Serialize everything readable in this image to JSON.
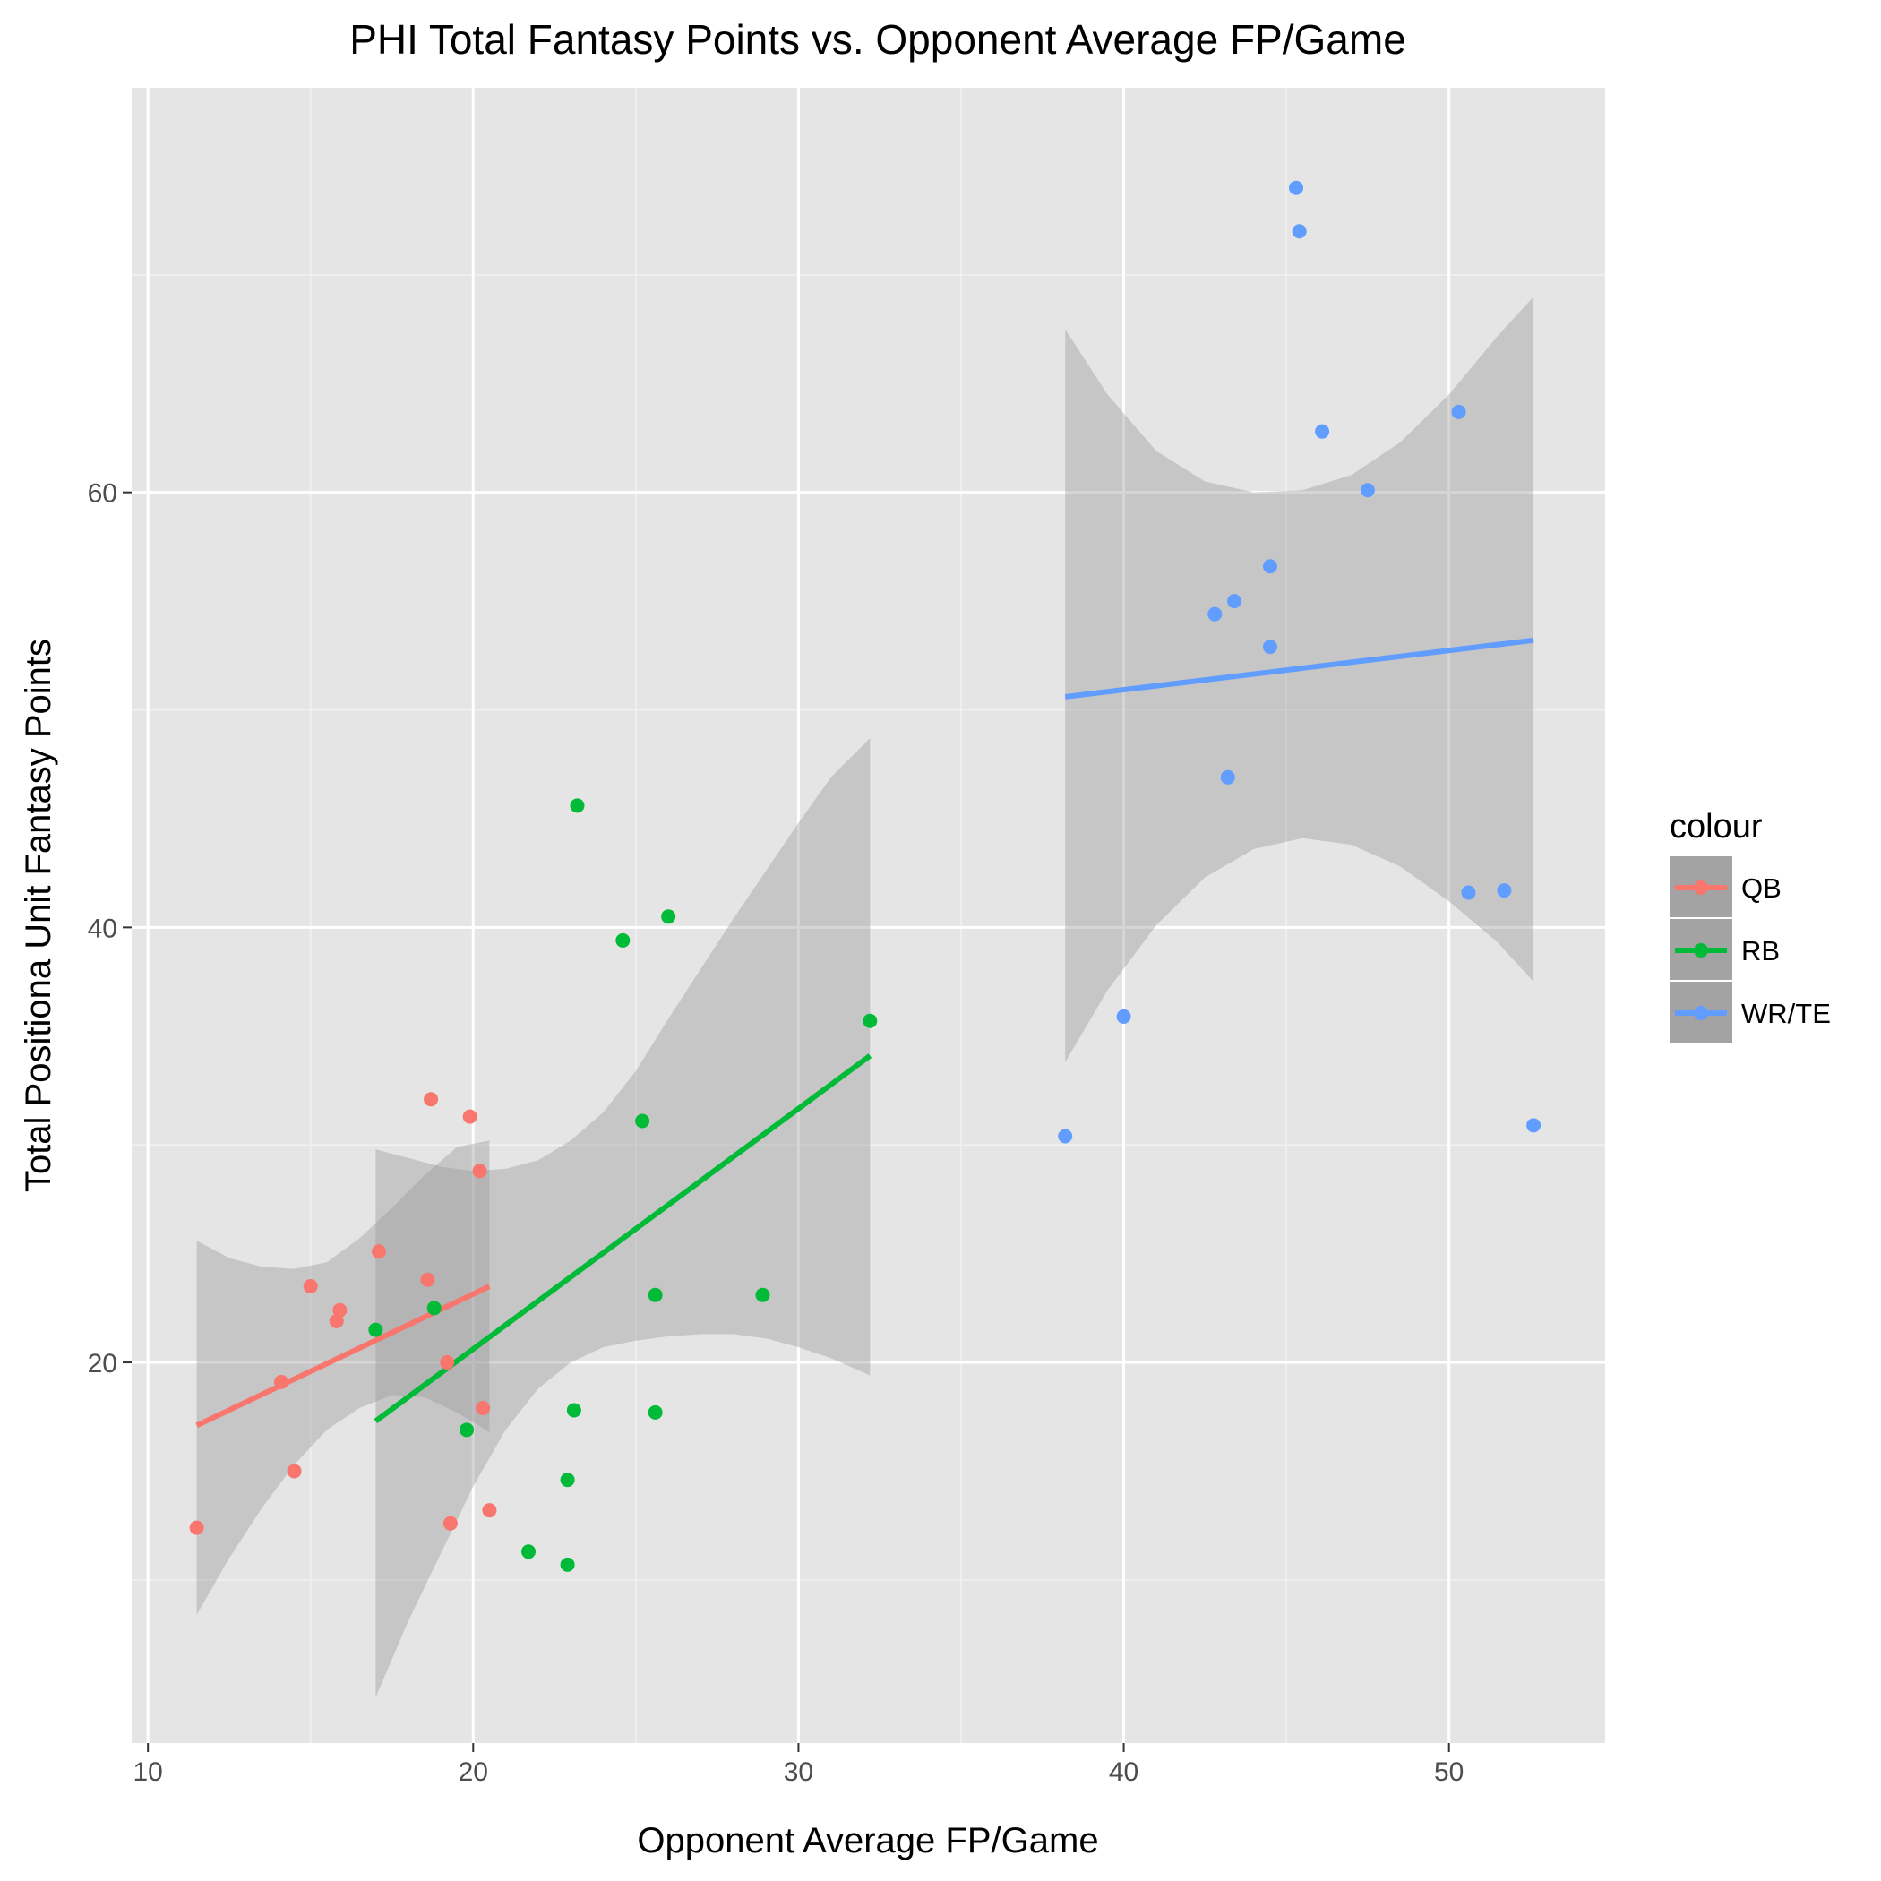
{
  "chart_data": {
    "type": "scatter",
    "title": "PHI Total Fantasy Points vs. Opponent Average FP/Game",
    "xlabel": "Opponent Average FP/Game",
    "ylabel": "Total Positiona Unit Fantasy Points",
    "xlim": [
      9.5,
      54.8
    ],
    "ylim": [
      2.5,
      78.6
    ],
    "x_ticks": [
      10,
      20,
      30,
      40,
      50
    ],
    "y_ticks": [
      20,
      40,
      60
    ],
    "grid": true,
    "legend": {
      "title": "colour",
      "placement": "right"
    },
    "series": [
      {
        "name": "QB",
        "color": "#F8766D",
        "points": [
          {
            "x": 11.5,
            "y": 12.4
          },
          {
            "x": 14.1,
            "y": 19.1
          },
          {
            "x": 14.5,
            "y": 15.0
          },
          {
            "x": 15.0,
            "y": 23.5
          },
          {
            "x": 15.8,
            "y": 21.9
          },
          {
            "x": 15.9,
            "y": 22.4
          },
          {
            "x": 17.1,
            "y": 25.1
          },
          {
            "x": 18.6,
            "y": 23.8
          },
          {
            "x": 18.7,
            "y": 32.1
          },
          {
            "x": 19.2,
            "y": 20.0
          },
          {
            "x": 19.3,
            "y": 12.6
          },
          {
            "x": 19.9,
            "y": 31.3
          },
          {
            "x": 20.2,
            "y": 28.8
          },
          {
            "x": 20.3,
            "y": 17.9
          },
          {
            "x": 20.5,
            "y": 13.2
          }
        ],
        "trend": {
          "x": [
            11.5,
            20.5
          ],
          "y": [
            17.1,
            23.5
          ]
        },
        "band": {
          "x": [
            11.5,
            12.5,
            13.5,
            14.5,
            15.5,
            16.5,
            17.5,
            18.5,
            19.5,
            20.5
          ],
          "lo": [
            8.4,
            11.0,
            13.3,
            15.3,
            16.9,
            17.9,
            18.5,
            18.4,
            17.7,
            16.8
          ],
          "hi": [
            25.6,
            24.8,
            24.4,
            24.3,
            24.6,
            25.7,
            27.1,
            28.6,
            29.9,
            30.2
          ]
        }
      },
      {
        "name": "RB",
        "color": "#00BA38",
        "points": [
          {
            "x": 17.0,
            "y": 21.5
          },
          {
            "x": 18.8,
            "y": 22.5
          },
          {
            "x": 19.8,
            "y": 16.9
          },
          {
            "x": 21.7,
            "y": 11.3
          },
          {
            "x": 22.9,
            "y": 14.6
          },
          {
            "x": 22.9,
            "y": 10.7
          },
          {
            "x": 23.1,
            "y": 17.8
          },
          {
            "x": 23.2,
            "y": 45.6
          },
          {
            "x": 24.6,
            "y": 39.4
          },
          {
            "x": 25.2,
            "y": 31.1
          },
          {
            "x": 25.6,
            "y": 23.1
          },
          {
            "x": 25.6,
            "y": 17.7
          },
          {
            "x": 26.0,
            "y": 40.5
          },
          {
            "x": 28.9,
            "y": 23.1
          },
          {
            "x": 32.2,
            "y": 35.7
          }
        ],
        "trend": {
          "x": [
            17.0,
            32.2
          ],
          "y": [
            17.3,
            34.1
          ]
        },
        "band": {
          "x": [
            17.0,
            18.0,
            19.0,
            20.0,
            21.0,
            22.0,
            23.0,
            24.0,
            25.0,
            26.0,
            27.0,
            28.0,
            29.0,
            30.0,
            31.0,
            32.2
          ],
          "lo": [
            4.6,
            8.1,
            11.2,
            14.3,
            16.9,
            18.8,
            20.0,
            20.7,
            21.0,
            21.2,
            21.3,
            21.3,
            21.1,
            20.7,
            20.2,
            19.4
          ],
          "hi": [
            29.8,
            29.4,
            29.0,
            28.8,
            28.9,
            29.3,
            30.2,
            31.5,
            33.4,
            35.8,
            38.1,
            40.4,
            42.6,
            44.8,
            46.9,
            48.7
          ]
        }
      },
      {
        "name": "WR/TE",
        "color": "#619CFF",
        "points": [
          {
            "x": 38.2,
            "y": 30.4
          },
          {
            "x": 40.0,
            "y": 35.9
          },
          {
            "x": 42.8,
            "y": 54.4
          },
          {
            "x": 43.2,
            "y": 46.9
          },
          {
            "x": 43.4,
            "y": 55.0
          },
          {
            "x": 44.5,
            "y": 52.9
          },
          {
            "x": 44.5,
            "y": 56.6
          },
          {
            "x": 45.3,
            "y": 74.0
          },
          {
            "x": 45.4,
            "y": 72.0
          },
          {
            "x": 46.1,
            "y": 62.8
          },
          {
            "x": 47.5,
            "y": 60.1
          },
          {
            "x": 50.3,
            "y": 63.7
          },
          {
            "x": 50.6,
            "y": 41.6
          },
          {
            "x": 51.7,
            "y": 41.7
          },
          {
            "x": 52.6,
            "y": 30.9
          }
        ],
        "trend": {
          "x": [
            38.2,
            52.6
          ],
          "y": [
            50.6,
            53.2
          ]
        },
        "band": {
          "x": [
            38.2,
            39.5,
            41.0,
            42.5,
            44.0,
            45.5,
            47.0,
            48.5,
            50.0,
            51.5,
            52.6
          ],
          "lo": [
            33.8,
            37.1,
            40.1,
            42.3,
            43.6,
            44.1,
            43.8,
            42.8,
            41.2,
            39.3,
            37.5
          ],
          "hi": [
            67.5,
            64.5,
            61.9,
            60.5,
            60.0,
            60.1,
            60.8,
            62.3,
            64.5,
            67.2,
            69.0
          ]
        }
      }
    ]
  }
}
